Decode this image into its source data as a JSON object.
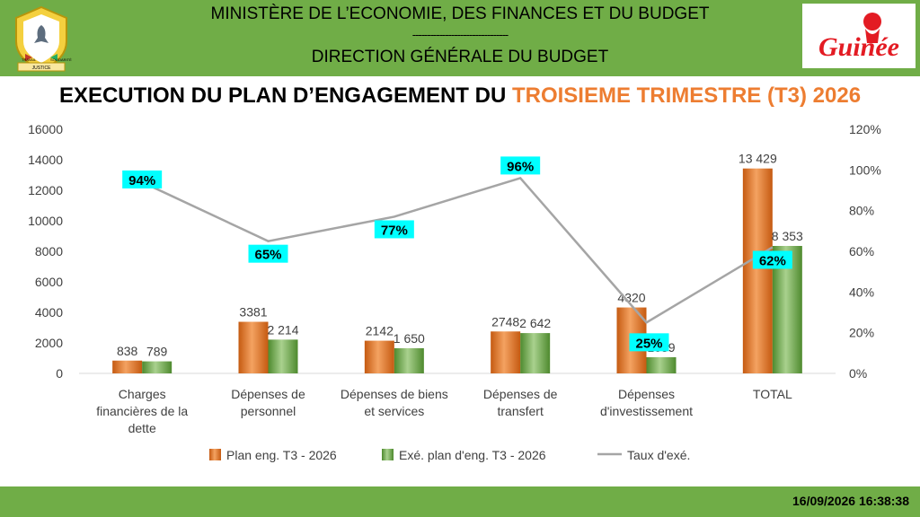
{
  "header": {
    "ministry": "MINISTÈRE DE L’ECONOMIE, DES FINANCES ET DU BUDGET",
    "divider": "--------------------------------",
    "direction": "DIRECTION GÉNÉRALE DU BUDGET",
    "emblem_motto_left": "TRAVAIL",
    "emblem_motto_center": "JUSTICE",
    "emblem_motto_right": "SOLIDARITÉ",
    "logo_text": "Guinée"
  },
  "title": {
    "prefix": "EXECUTION DU PLAN D’ENGAGEMENT DU ",
    "highlight": "TROISIEME TRIMESTRE (T3) 2026"
  },
  "footer": {
    "timestamp": "16/09/2026 16:38:38"
  },
  "colors": {
    "header_bg": "#70ad47",
    "plan": "#ed7d31",
    "exe": "#70ad47",
    "rate_line": "#a5a5a5",
    "rate_label_bg": "#00ffff",
    "title_highlight": "#ed7d31"
  },
  "chart_data": {
    "type": "bar",
    "categories": [
      [
        "Charges",
        "financières de la",
        "dette"
      ],
      [
        "Dépenses de",
        "personnel"
      ],
      [
        "Dépenses de biens",
        "et services"
      ],
      [
        "Dépenses de",
        "transfert"
      ],
      [
        "Dépenses",
        "d'investissement"
      ],
      [
        "TOTAL"
      ]
    ],
    "series": [
      {
        "name": "Plan eng. T3 - 2026",
        "values": [
          838,
          3381,
          2142,
          2748,
          4320,
          13429
        ],
        "labels": [
          "838",
          "3381",
          "2142",
          "2748",
          "4320",
          "13 429"
        ]
      },
      {
        "name": "Exé. plan d'eng. T3 - 2026",
        "values": [
          789,
          2214,
          1650,
          2642,
          1059,
          8353
        ],
        "labels": [
          "789",
          "2 214",
          "1 650",
          "2 642",
          "1059",
          "8 353"
        ]
      }
    ],
    "line": {
      "name": "Taux d'exé.",
      "values": [
        94,
        65,
        77,
        96,
        25,
        62
      ],
      "labels": [
        "94%",
        "65%",
        "77%",
        "96%",
        "25%",
        "62%"
      ]
    },
    "y_left": {
      "ylim": [
        0,
        16000
      ],
      "ticks": [
        "0",
        "2000",
        "4000",
        "6000",
        "8000",
        "10000",
        "12000",
        "14000",
        "16000"
      ]
    },
    "y_right": {
      "ylim": [
        0,
        120
      ],
      "ticks": [
        "0%",
        "20%",
        "40%",
        "60%",
        "80%",
        "100%",
        "120%"
      ]
    },
    "legend_position": "bottom",
    "grid": false
  }
}
